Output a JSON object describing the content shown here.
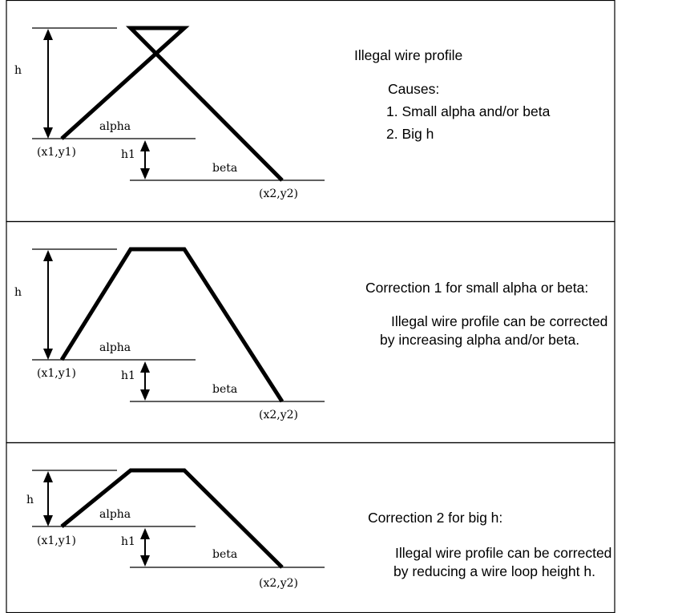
{
  "labels": {
    "h": "h",
    "h1": "h1",
    "alpha": "alpha",
    "beta": "beta",
    "p1": "(x1,y1)",
    "p2": "(x2,y2)"
  },
  "panels": [
    {
      "heading": "Illegal wire profile",
      "sub": "Causes:",
      "lines": [
        "1. Small alpha and/or beta",
        "2. Big h"
      ]
    },
    {
      "heading": "Correction 1 for small alpha or beta:",
      "lines": [
        "Illegal wire profile can be corrected",
        "by increasing alpha and/or beta."
      ]
    },
    {
      "heading": "Correction 2 for big h:",
      "lines": [
        "Illegal wire profile can be corrected",
        "by reducing a wire loop height h."
      ]
    }
  ]
}
